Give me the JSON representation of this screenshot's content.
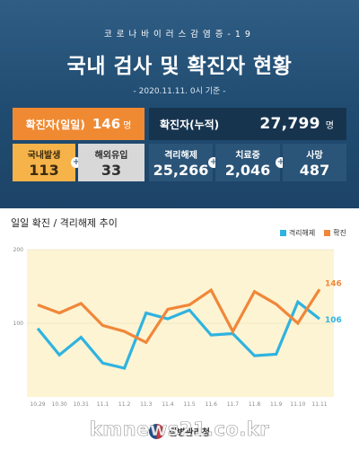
{
  "header": {
    "series_title": "코로나바이러스감염증-19",
    "headline": "국내 검사 및 확진자 현황",
    "as_of": "- 2020.11.11. 0시 기준 -"
  },
  "stats": {
    "daily": {
      "label": "확진자(일일)",
      "value": "146",
      "unit": "명"
    },
    "cumulative": {
      "label": "확진자(누적)",
      "value": "27,799",
      "unit": "명"
    },
    "local": {
      "label": "국내발생",
      "value": "113"
    },
    "overseas": {
      "label": "해외유입",
      "value": "33"
    },
    "released": {
      "label": "격리해제",
      "value": "25,266"
    },
    "in_treatment": {
      "label": "치료중",
      "value": "2,046"
    },
    "deaths": {
      "label": "사망",
      "value": "487"
    },
    "plus_glyph": "+"
  },
  "colors": {
    "released_line": "#2fb3e0",
    "confirmed_line": "#f0873a",
    "plot_bg": "#fdf4d3",
    "header_bg": "#204b70"
  },
  "chart_data": {
    "type": "line",
    "title": "일일 확진 / 격리해제 추이",
    "x": [
      "10.29",
      "10.30",
      "10.31",
      "11.1",
      "11.2",
      "11.3",
      "11.4",
      "11.5",
      "11.6",
      "11.7",
      "11.8",
      "11.9",
      "11.10",
      "11.11"
    ],
    "series": [
      {
        "name": "격리해제",
        "color": "#2fb3e0",
        "values": [
          93,
          57,
          81,
          46,
          39,
          114,
          106,
          118,
          84,
          86,
          56,
          58,
          129,
          106
        ]
      },
      {
        "name": "확진",
        "color": "#f0873a",
        "values": [
          125,
          114,
          127,
          97,
          89,
          74,
          119,
          125,
          145,
          89,
          143,
          126,
          100,
          146
        ]
      }
    ],
    "yticks": [
      "200",
      "100"
    ],
    "ylim": [
      0,
      200
    ],
    "end_labels": [
      "146",
      "106"
    ],
    "legend": "top-right",
    "grid": "horizontal"
  },
  "footer": {
    "org": "질병관리청",
    "watermark": "kmnews21.co.kr"
  }
}
